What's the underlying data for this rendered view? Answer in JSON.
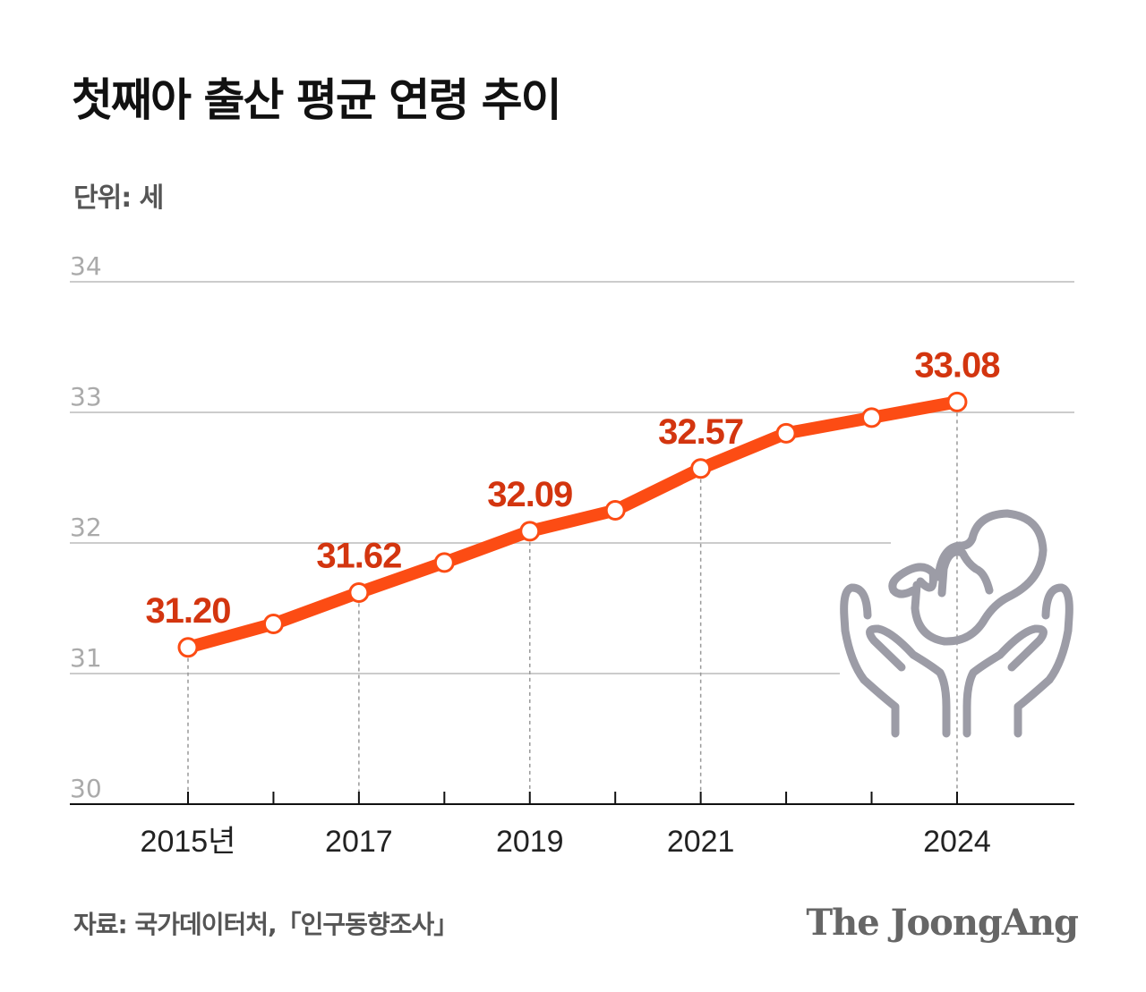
{
  "title": "첫째아 출산 평균 연령 추이",
  "unit": "단위: 세",
  "source": "자료: 국가데이터처,「인구동향조사」",
  "logo": "The JoongAng",
  "icon": "hands-holding-baby-icon",
  "colors": {
    "line": "#fc4c14",
    "label": "#d3350f",
    "grid": "#cccccc",
    "axis": "#111111",
    "icon": "#9c9ca6"
  },
  "chart_data": {
    "type": "line",
    "title": "첫째아 출산 평균 연령 추이",
    "ylabel": "단위: 세",
    "ylim": [
      30,
      34
    ],
    "yticks": [
      "30",
      "31",
      "32",
      "33",
      "34"
    ],
    "x": [
      2015,
      2016,
      2017,
      2018,
      2019,
      2020,
      2021,
      2022,
      2023,
      2024
    ],
    "xtick_labels": [
      {
        "x": 2015,
        "label": "2015년"
      },
      {
        "x": 2017,
        "label": "2017"
      },
      {
        "x": 2019,
        "label": "2019"
      },
      {
        "x": 2021,
        "label": "2021"
      },
      {
        "x": 2024,
        "label": "2024"
      }
    ],
    "values": [
      31.2,
      31.38,
      31.62,
      31.85,
      32.09,
      32.25,
      32.57,
      32.84,
      32.96,
      33.08
    ],
    "data_labels": [
      {
        "x": 2015,
        "label": "31.20"
      },
      {
        "x": 2017,
        "label": "31.62"
      },
      {
        "x": 2019,
        "label": "32.09"
      },
      {
        "x": 2021,
        "label": "32.57"
      },
      {
        "x": 2024,
        "label": "33.08"
      }
    ],
    "grid": true
  }
}
